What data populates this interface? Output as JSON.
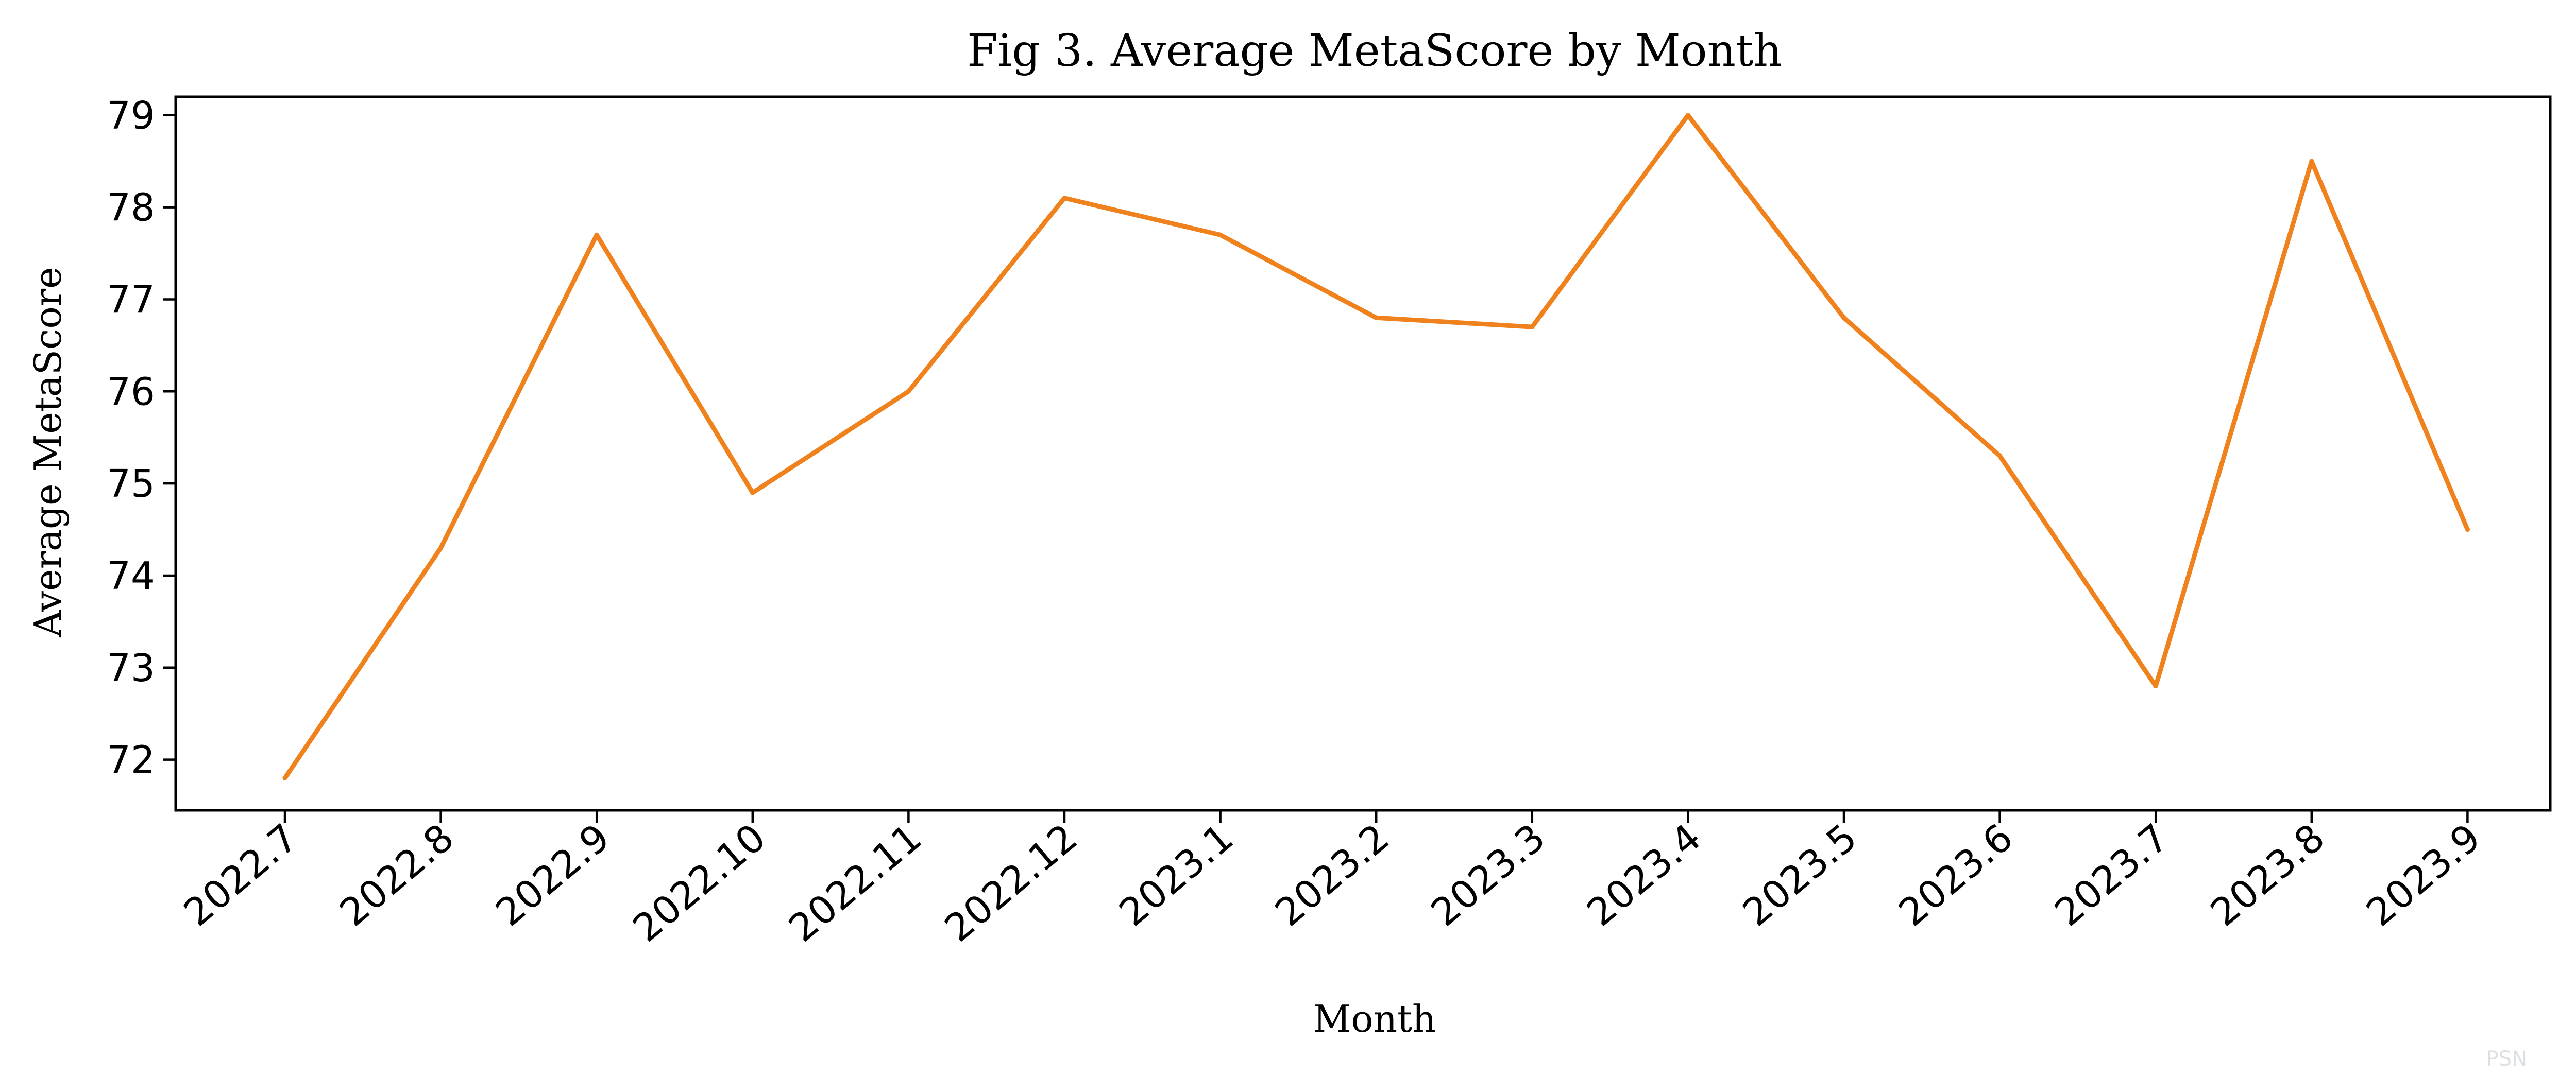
{
  "chart_data": {
    "type": "line",
    "title": "Fig 3. Average MetaScore by Month",
    "xlabel": "Month",
    "ylabel": "Average MetaScore",
    "categories": [
      "2022.7",
      "2022.8",
      "2022.9",
      "2022.10",
      "2022.11",
      "2022.12",
      "2023.1",
      "2023.2",
      "2023.3",
      "2023.4",
      "2023.5",
      "2023.6",
      "2023.7",
      "2023.8",
      "2023.9"
    ],
    "series": [
      {
        "color": "#f0821e",
        "values": [
          71.8,
          74.3,
          77.7,
          74.9,
          76.0,
          78.1,
          77.7,
          76.8,
          76.7,
          79.0,
          76.8,
          75.3,
          72.8,
          78.5,
          74.5
        ]
      }
    ],
    "yticks": [
      72,
      73,
      74,
      75,
      76,
      77,
      78,
      79
    ],
    "ylim": [
      71.45,
      79.2
    ],
    "grid": false,
    "legend": "none"
  }
}
